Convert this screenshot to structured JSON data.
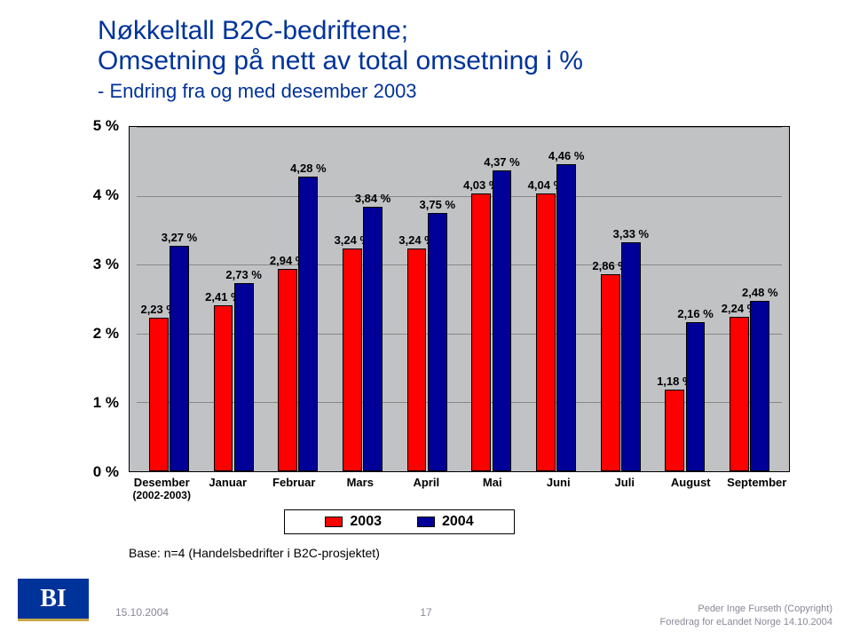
{
  "title_line1": "Nøkkeltall B2C-bedriftene;",
  "title_line2": "Omsetning på nett av total omsetning i %",
  "subtitle": "- Endring fra og med desember 2003",
  "chart": {
    "type": "bar",
    "background_color": "#c0c2c4",
    "grid_color": "#888888",
    "ylim": [
      0,
      5
    ],
    "yticks": [
      0,
      1,
      2,
      3,
      4,
      5
    ],
    "ytick_labels": [
      "0 %",
      "1 %",
      "2 %",
      "3 %",
      "4 %",
      "5 %"
    ],
    "ytick_fontsize": 17,
    "categories": [
      "Desember\n(2002-2003)",
      "Januar",
      "Februar",
      "Mars",
      "April",
      "Mai",
      "Juni",
      "Juli",
      "August",
      "September"
    ],
    "series": [
      {
        "name": "2003",
        "color": "#ff0000",
        "values": [
          2.23,
          2.41,
          2.94,
          3.24,
          3.24,
          4.03,
          4.04,
          2.86,
          1.18,
          2.24
        ],
        "labels": [
          "2,23 %",
          "2,41 %",
          "2,94 %",
          "3,24 %",
          "3,24 %",
          "4,03 %",
          "4,04 %",
          "2,86 %",
          "1,18 %",
          "2,24 %"
        ]
      },
      {
        "name": "2004",
        "color": "#000099",
        "values": [
          3.27,
          2.73,
          4.28,
          3.84,
          3.75,
          4.37,
          4.46,
          3.33,
          2.16,
          2.48
        ],
        "labels": [
          "3,27 %",
          "2,73 %",
          "4,28 %",
          "3,84 %",
          "3,75 %",
          "4,37 %",
          "4,46 %",
          "3,33 %",
          "2,16 %",
          "2,48 %"
        ]
      }
    ],
    "bar_label_fontsize": 13,
    "xtick_fontsize": 13
  },
  "legend": {
    "items": [
      {
        "label": "2003",
        "color": "#ff0000"
      },
      {
        "label": "2004",
        "color": "#000099"
      }
    ]
  },
  "base_note": "Base: n=4 (Handelsbedrifter i B2C-prosjektet)",
  "footer": {
    "date": "15.10.2004",
    "page": "17",
    "right1": "Peder Inge Furseth (Copyright)",
    "right2": "Foredrag for eLandet Norge 14.10.2004",
    "logo_text": "BI"
  }
}
